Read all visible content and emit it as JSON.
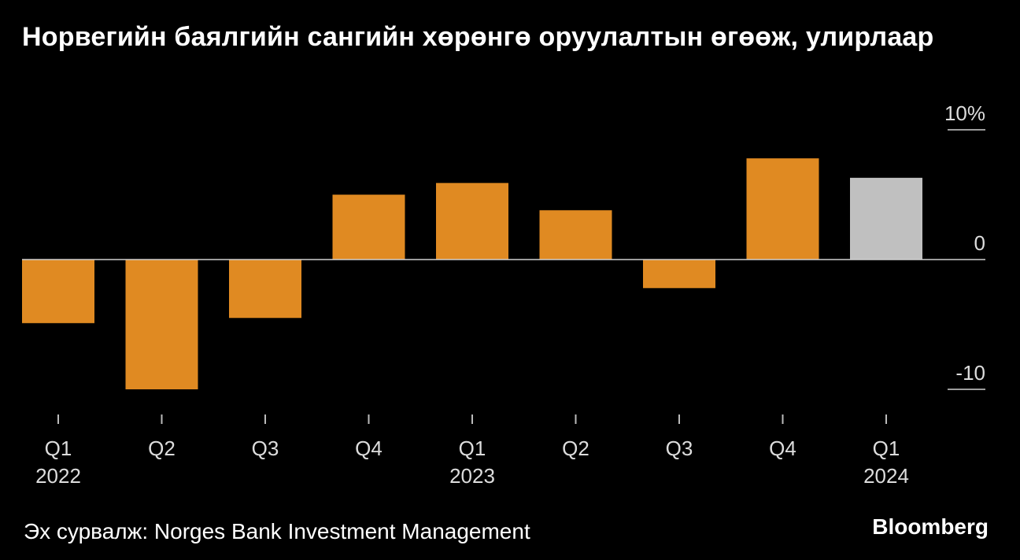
{
  "title": "Норвегийн баялгийн сангийн хөрөнгө оруулалтын өгөөж, улирлаар",
  "source": "Эх сурвалж: Norges Bank Investment Management",
  "logo": "Bloomberg",
  "colors": {
    "background": "#000000",
    "bar": "#e08a22",
    "bar_highlight": "#c0c0c0",
    "zero_line": "#cfcfcf",
    "text": "#ffffff"
  },
  "chart_data": {
    "type": "bar",
    "title": "Норвегийн баялгийн сангийн хөрөнгө оруулалтын өгөөж, улирлаар",
    "xlabel": "",
    "ylabel": "",
    "ylim": [
      -12.5,
      10.5
    ],
    "yticks": [
      {
        "value": 10,
        "label": "10%"
      },
      {
        "value": 0,
        "label": "0"
      },
      {
        "value": -10,
        "label": "-10"
      }
    ],
    "categories": [
      "Q1",
      "Q2",
      "Q3",
      "Q4",
      "Q1",
      "Q2",
      "Q3",
      "Q4",
      "Q1"
    ],
    "years": [
      "2022",
      "",
      "",
      "",
      "2023",
      "",
      "",
      "",
      "2024"
    ],
    "values": [
      -4.9,
      -10.0,
      -4.5,
      5.0,
      5.9,
      3.8,
      -2.2,
      7.8,
      6.3
    ],
    "highlight_index": 8,
    "grid": false,
    "legend": "none"
  }
}
